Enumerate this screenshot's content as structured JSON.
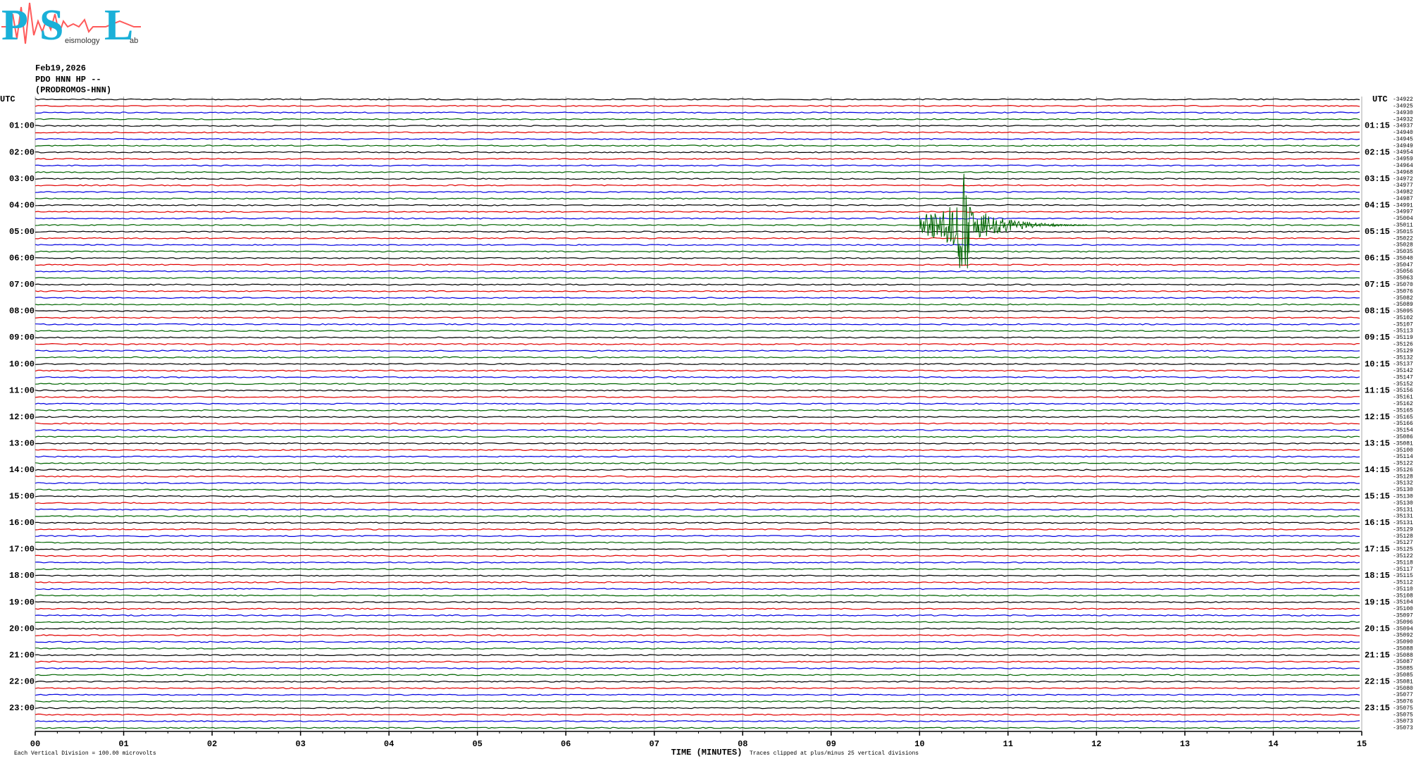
{
  "chart_data": {
    "type": "helicorder",
    "logo": {
      "letters": [
        "P",
        "S",
        "L"
      ],
      "small": [
        "eismology",
        "ab"
      ]
    },
    "header": [
      "Feb19,2026",
      "PDO HNN HP --",
      "(PRODROMOS-HNN)"
    ],
    "left_labels": [
      "UTC",
      "01:00",
      "02:00",
      "03:00",
      "04:00",
      "05:00",
      "06:00",
      "07:00",
      "08:00",
      "09:00",
      "10:00",
      "11:00",
      "12:00",
      "13:00",
      "14:00",
      "15:00",
      "16:00",
      "17:00",
      "18:00",
      "19:00",
      "20:00",
      "21:00",
      "22:00",
      "23:00"
    ],
    "right_labels": [
      "UTC",
      "01:15",
      "02:15",
      "03:15",
      "04:15",
      "05:15",
      "06:15",
      "07:15",
      "08:15",
      "09:15",
      "10:15",
      "11:15",
      "12:15",
      "13:15",
      "14:15",
      "15:15",
      "16:15",
      "17:15",
      "18:15",
      "19:15",
      "20:15",
      "21:15",
      "22:15",
      "23:15"
    ],
    "trace_offsets": [
      "-34922",
      "-34925",
      "-34930",
      "-34932",
      "-34937",
      "-34940",
      "-34945",
      "-34949",
      "-34954",
      "-34959",
      "-34964",
      "-34968",
      "-34972",
      "-34977",
      "-34982",
      "-34987",
      "-34991",
      "-34997",
      "-35004",
      "-35011",
      "-35015",
      "-35022",
      "-35028",
      "-35035",
      "-35040",
      "-35047",
      "-35056",
      "-35063",
      "-35070",
      "-35076",
      "-35082",
      "-35089",
      "-35095",
      "-35102",
      "-35107",
      "-35113",
      "-35119",
      "-35126",
      "-35129",
      "-35132",
      "-35137",
      "-35142",
      "-35147",
      "-35152",
      "-35156",
      "-35161",
      "-35162",
      "-35165",
      "-35165",
      "-35166",
      "-35154",
      "-35086",
      "-35081",
      "-35100",
      "-35114",
      "-35122",
      "-35126",
      "-35128",
      "-35132",
      "-35130",
      "-35130",
      "-35130",
      "-35131",
      "-35131",
      "-35131",
      "-35129",
      "-35128",
      "-35127",
      "-35125",
      "-35122",
      "-35118",
      "-35117",
      "-35115",
      "-35112",
      "-35110",
      "-35108",
      "-35104",
      "-35100",
      "-35097",
      "-35096",
      "-35094",
      "-35092",
      "-35090",
      "-35088",
      "-35088",
      "-35087",
      "-35085",
      "-35085",
      "-35081",
      "-35080",
      "-35077",
      "-35076",
      "-35075",
      "-35075",
      "-35073",
      "-35073"
    ],
    "trace_colors": [
      "#000000",
      "#e00000",
      "#0000e0",
      "#006400"
    ],
    "xlim": [
      0,
      15
    ],
    "xticks": [
      {
        "value": 0,
        "label": "00"
      },
      {
        "value": 1,
        "label": "01"
      },
      {
        "value": 2,
        "label": "02"
      },
      {
        "value": 3,
        "label": "03"
      },
      {
        "value": 4,
        "label": "04"
      },
      {
        "value": 5,
        "label": "05"
      },
      {
        "value": 6,
        "label": "06"
      },
      {
        "value": 7,
        "label": "07"
      },
      {
        "value": 8,
        "label": "08"
      },
      {
        "value": 9,
        "label": "09"
      },
      10,
      11,
      12,
      13,
      14,
      15
    ],
    "xlabel": "TIME (MINUTES)",
    "scale_note": "Each Vertical Division =  100.00 microvolts",
    "clip_note": "Traces clipped at plus/minus 25 vertical divisions",
    "grid": true
  }
}
